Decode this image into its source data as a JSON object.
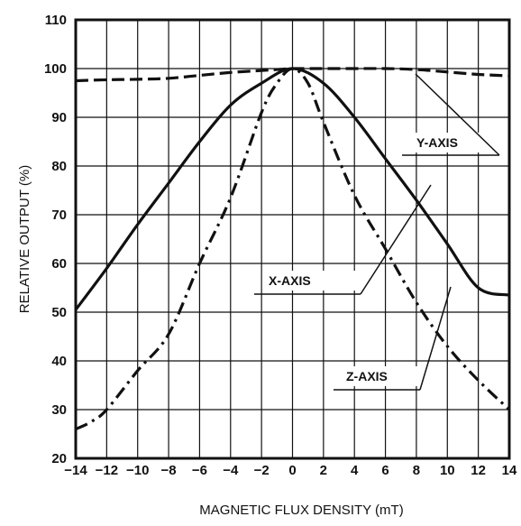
{
  "chart_data": {
    "type": "line",
    "xlabel": "MAGNETIC FLUX DENSITY (mT)",
    "ylabel": "RELATIVE OUTPUT (%)",
    "xlim": [
      -14,
      14
    ],
    "ylim": [
      20,
      110
    ],
    "x_ticks": [
      -14,
      -12,
      -10,
      -8,
      -6,
      -4,
      -2,
      0,
      2,
      4,
      6,
      8,
      10,
      12,
      14
    ],
    "x_tick_labels": [
      "−14",
      "−12",
      "−10",
      "−8",
      "−6",
      "−4",
      "−2",
      "0",
      "2",
      "4",
      "6",
      "8",
      "10",
      "12",
      "14"
    ],
    "y_ticks": [
      20,
      30,
      40,
      50,
      60,
      70,
      80,
      90,
      100,
      110
    ],
    "y_tick_labels": [
      "20",
      "30",
      "40",
      "50",
      "60",
      "70",
      "80",
      "90",
      "100",
      "110"
    ],
    "grid": true,
    "series": [
      {
        "name": "Y-AXIS",
        "style": "dashed",
        "x": [
          -14,
          -12,
          -10,
          -8,
          -6,
          -4,
          -2,
          -1,
          0,
          1,
          2,
          4,
          6,
          8,
          10,
          12,
          14
        ],
        "y": [
          97.5,
          97.7,
          97.8,
          98.0,
          98.6,
          99.2,
          99.6,
          99.8,
          100,
          100,
          100,
          100,
          100,
          99.8,
          99.3,
          98.8,
          98.5
        ]
      },
      {
        "name": "X-AXIS",
        "style": "solid",
        "x": [
          -14,
          -12,
          -10,
          -8,
          -6,
          -4,
          -2,
          0,
          2,
          4,
          6,
          8,
          10,
          12,
          14
        ],
        "y": [
          50.5,
          59,
          68,
          76.5,
          85,
          92.5,
          97,
          100,
          97,
          90,
          81.5,
          73,
          64,
          55,
          53.5
        ]
      },
      {
        "name": "Z-AXIS",
        "style": "dash-dot",
        "x": [
          -14,
          -13,
          -12,
          -10,
          -8,
          -6,
          -4,
          -2,
          -1,
          0,
          1,
          2,
          4,
          6,
          8,
          10,
          12,
          14
        ],
        "y": [
          26,
          27.5,
          30,
          38,
          45.5,
          60,
          73.5,
          91,
          97,
          100,
          97,
          89,
          74,
          63,
          52,
          43,
          36,
          30
        ]
      }
    ],
    "colors": {
      "lines": "#111111",
      "grid": "#111111",
      "background": "#ffffff"
    }
  }
}
